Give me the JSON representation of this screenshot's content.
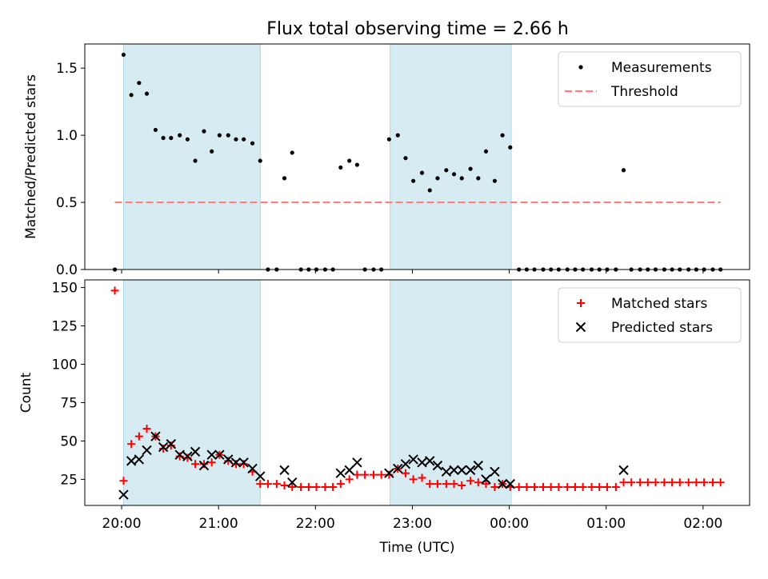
{
  "title": "Flux total observing time = 2.66 h",
  "colors": {
    "shade": "#add8e6",
    "threshold": "#ff7f7f",
    "matched": "#ff0000",
    "predicted": "#000000",
    "measurement": "#000000"
  },
  "chart_data": [
    {
      "type": "scatter",
      "panel": "top",
      "ylabel": "Matched/Predicted stars",
      "ylim": [
        0,
        1.68
      ],
      "yticks": [
        0.0,
        0.5,
        1.0,
        1.5
      ],
      "ytick_labels": [
        "0.0",
        "0.5",
        "1.0",
        "1.5"
      ],
      "xlim_hours": [
        19.62,
        26.48
      ],
      "shaded_spans_hours": [
        [
          20.02,
          21.43
        ],
        [
          22.77,
          24.02
        ]
      ],
      "legend_position": "upper-right",
      "legend": [
        {
          "label": "Measurements",
          "marker": "dot"
        },
        {
          "label": "Threshold",
          "marker": "dashed-line"
        }
      ],
      "threshold": {
        "value": 0.5,
        "x_range_hours": [
          19.93,
          26.18
        ]
      },
      "series": [
        {
          "name": "Measurements",
          "points": [
            [
              19.93,
              0.0
            ],
            [
              20.02,
              1.6
            ],
            [
              20.1,
              1.3
            ],
            [
              20.18,
              1.39
            ],
            [
              20.26,
              1.31
            ],
            [
              20.35,
              1.04
            ],
            [
              20.43,
              0.98
            ],
            [
              20.51,
              0.98
            ],
            [
              20.6,
              1.0
            ],
            [
              20.68,
              0.97
            ],
            [
              20.76,
              0.81
            ],
            [
              20.85,
              1.03
            ],
            [
              20.93,
              0.88
            ],
            [
              21.01,
              1.0
            ],
            [
              21.1,
              1.0
            ],
            [
              21.18,
              0.97
            ],
            [
              21.26,
              0.97
            ],
            [
              21.35,
              0.94
            ],
            [
              21.43,
              0.81
            ],
            [
              21.51,
              0.0
            ],
            [
              21.6,
              0.0
            ],
            [
              21.68,
              0.68
            ],
            [
              21.76,
              0.87
            ],
            [
              21.85,
              0.0
            ],
            [
              21.93,
              0.0
            ],
            [
              22.01,
              0.0
            ],
            [
              22.1,
              0.0
            ],
            [
              22.18,
              0.0
            ],
            [
              22.26,
              0.76
            ],
            [
              22.35,
              0.81
            ],
            [
              22.43,
              0.78
            ],
            [
              22.51,
              0.0
            ],
            [
              22.6,
              0.0
            ],
            [
              22.68,
              0.0
            ],
            [
              22.76,
              0.97
            ],
            [
              22.85,
              1.0
            ],
            [
              22.93,
              0.83
            ],
            [
              23.01,
              0.66
            ],
            [
              23.1,
              0.72
            ],
            [
              23.18,
              0.59
            ],
            [
              23.26,
              0.68
            ],
            [
              23.35,
              0.74
            ],
            [
              23.43,
              0.71
            ],
            [
              23.51,
              0.68
            ],
            [
              23.6,
              0.75
            ],
            [
              23.68,
              0.68
            ],
            [
              23.76,
              0.88
            ],
            [
              23.85,
              0.66
            ],
            [
              23.93,
              1.0
            ],
            [
              24.01,
              0.91
            ],
            [
              24.1,
              0.0
            ],
            [
              24.18,
              0.0
            ],
            [
              24.26,
              0.0
            ],
            [
              24.35,
              0.0
            ],
            [
              24.43,
              0.0
            ],
            [
              24.51,
              0.0
            ],
            [
              24.6,
              0.0
            ],
            [
              24.68,
              0.0
            ],
            [
              24.76,
              0.0
            ],
            [
              24.85,
              0.0
            ],
            [
              24.93,
              0.0
            ],
            [
              25.01,
              0.0
            ],
            [
              25.1,
              0.0
            ],
            [
              25.18,
              0.74
            ],
            [
              25.26,
              0.0
            ],
            [
              25.35,
              0.0
            ],
            [
              25.43,
              0.0
            ],
            [
              25.51,
              0.0
            ],
            [
              25.6,
              0.0
            ],
            [
              25.68,
              0.0
            ],
            [
              25.76,
              0.0
            ],
            [
              25.85,
              0.0
            ],
            [
              25.93,
              0.0
            ],
            [
              26.01,
              0.0
            ],
            [
              26.1,
              0.0
            ],
            [
              26.18,
              0.0
            ]
          ]
        }
      ]
    },
    {
      "type": "scatter",
      "panel": "bottom",
      "xlabel": "Time (UTC)",
      "ylabel": "Count",
      "ylim": [
        8,
        155
      ],
      "yticks": [
        25,
        50,
        75,
        100,
        125,
        150
      ],
      "ytick_labels": [
        "25",
        "50",
        "75",
        "100",
        "125",
        "150"
      ],
      "xlim_hours": [
        19.62,
        26.48
      ],
      "xticks_hours": [
        20,
        21,
        22,
        23,
        24,
        25,
        26
      ],
      "xtick_labels": [
        "20:00",
        "21:00",
        "22:00",
        "23:00",
        "00:00",
        "01:00",
        "02:00"
      ],
      "shaded_spans_hours": [
        [
          20.02,
          21.43
        ],
        [
          22.77,
          24.02
        ]
      ],
      "legend_position": "upper-right",
      "legend": [
        {
          "label": "Matched stars",
          "marker": "plus"
        },
        {
          "label": "Predicted stars",
          "marker": "x"
        }
      ],
      "series": [
        {
          "name": "Matched stars",
          "points": [
            [
              19.93,
              148
            ],
            [
              20.02,
              24
            ],
            [
              20.1,
              48
            ],
            [
              20.18,
              53
            ],
            [
              20.26,
              58
            ],
            [
              20.35,
              53
            ],
            [
              20.43,
              45
            ],
            [
              20.51,
              47
            ],
            [
              20.6,
              40
            ],
            [
              20.68,
              39
            ],
            [
              20.76,
              35
            ],
            [
              20.85,
              35
            ],
            [
              20.93,
              36
            ],
            [
              21.01,
              41
            ],
            [
              21.1,
              37
            ],
            [
              21.18,
              35
            ],
            [
              21.26,
              35
            ],
            [
              21.35,
              30
            ],
            [
              21.43,
              22
            ],
            [
              21.51,
              22
            ],
            [
              21.6,
              22
            ],
            [
              21.68,
              21
            ],
            [
              21.76,
              20
            ],
            [
              21.85,
              20
            ],
            [
              21.93,
              20
            ],
            [
              22.01,
              20
            ],
            [
              22.1,
              20
            ],
            [
              22.18,
              20
            ],
            [
              22.26,
              22
            ],
            [
              22.35,
              25
            ],
            [
              22.43,
              28
            ],
            [
              22.51,
              28
            ],
            [
              22.6,
              28
            ],
            [
              22.68,
              28
            ],
            [
              22.76,
              28
            ],
            [
              22.85,
              32
            ],
            [
              22.93,
              29
            ],
            [
              23.01,
              25
            ],
            [
              23.1,
              26
            ],
            [
              23.18,
              22
            ],
            [
              23.26,
              22
            ],
            [
              23.35,
              22
            ],
            [
              23.43,
              22
            ],
            [
              23.51,
              21
            ],
            [
              23.6,
              24
            ],
            [
              23.68,
              23
            ],
            [
              23.76,
              22
            ],
            [
              23.85,
              20
            ],
            [
              23.93,
              22
            ],
            [
              24.01,
              20
            ],
            [
              24.1,
              20
            ],
            [
              24.18,
              20
            ],
            [
              24.26,
              20
            ],
            [
              24.35,
              20
            ],
            [
              24.43,
              20
            ],
            [
              24.51,
              20
            ],
            [
              24.6,
              20
            ],
            [
              24.68,
              20
            ],
            [
              24.76,
              20
            ],
            [
              24.85,
              20
            ],
            [
              24.93,
              20
            ],
            [
              25.01,
              20
            ],
            [
              25.1,
              20
            ],
            [
              25.18,
              23
            ],
            [
              25.26,
              23
            ],
            [
              25.35,
              23
            ],
            [
              25.43,
              23
            ],
            [
              25.51,
              23
            ],
            [
              25.6,
              23
            ],
            [
              25.68,
              23
            ],
            [
              25.76,
              23
            ],
            [
              25.85,
              23
            ],
            [
              25.93,
              23
            ],
            [
              26.01,
              23
            ],
            [
              26.1,
              23
            ],
            [
              26.18,
              23
            ]
          ]
        },
        {
          "name": "Predicted stars",
          "points": [
            [
              20.02,
              15
            ],
            [
              20.1,
              37
            ],
            [
              20.18,
              38
            ],
            [
              20.26,
              44
            ],
            [
              20.35,
              53
            ],
            [
              20.43,
              46
            ],
            [
              20.51,
              48
            ],
            [
              20.6,
              41
            ],
            [
              20.68,
              40
            ],
            [
              20.76,
              43
            ],
            [
              20.85,
              34
            ],
            [
              20.93,
              41
            ],
            [
              21.01,
              41
            ],
            [
              21.1,
              38
            ],
            [
              21.18,
              36
            ],
            [
              21.26,
              36
            ],
            [
              21.35,
              32
            ],
            [
              21.43,
              27
            ],
            [
              21.68,
              31
            ],
            [
              21.76,
              23
            ],
            [
              22.26,
              29
            ],
            [
              22.35,
              31
            ],
            [
              22.43,
              36
            ],
            [
              22.76,
              29
            ],
            [
              22.85,
              32
            ],
            [
              22.93,
              35
            ],
            [
              23.01,
              38
            ],
            [
              23.1,
              36
            ],
            [
              23.18,
              37
            ],
            [
              23.26,
              34
            ],
            [
              23.35,
              30
            ],
            [
              23.43,
              31
            ],
            [
              23.51,
              31
            ],
            [
              23.6,
              31
            ],
            [
              23.68,
              34
            ],
            [
              23.76,
              25
            ],
            [
              23.85,
              30
            ],
            [
              23.93,
              22
            ],
            [
              24.01,
              22
            ],
            [
              25.18,
              31
            ]
          ]
        }
      ]
    }
  ]
}
